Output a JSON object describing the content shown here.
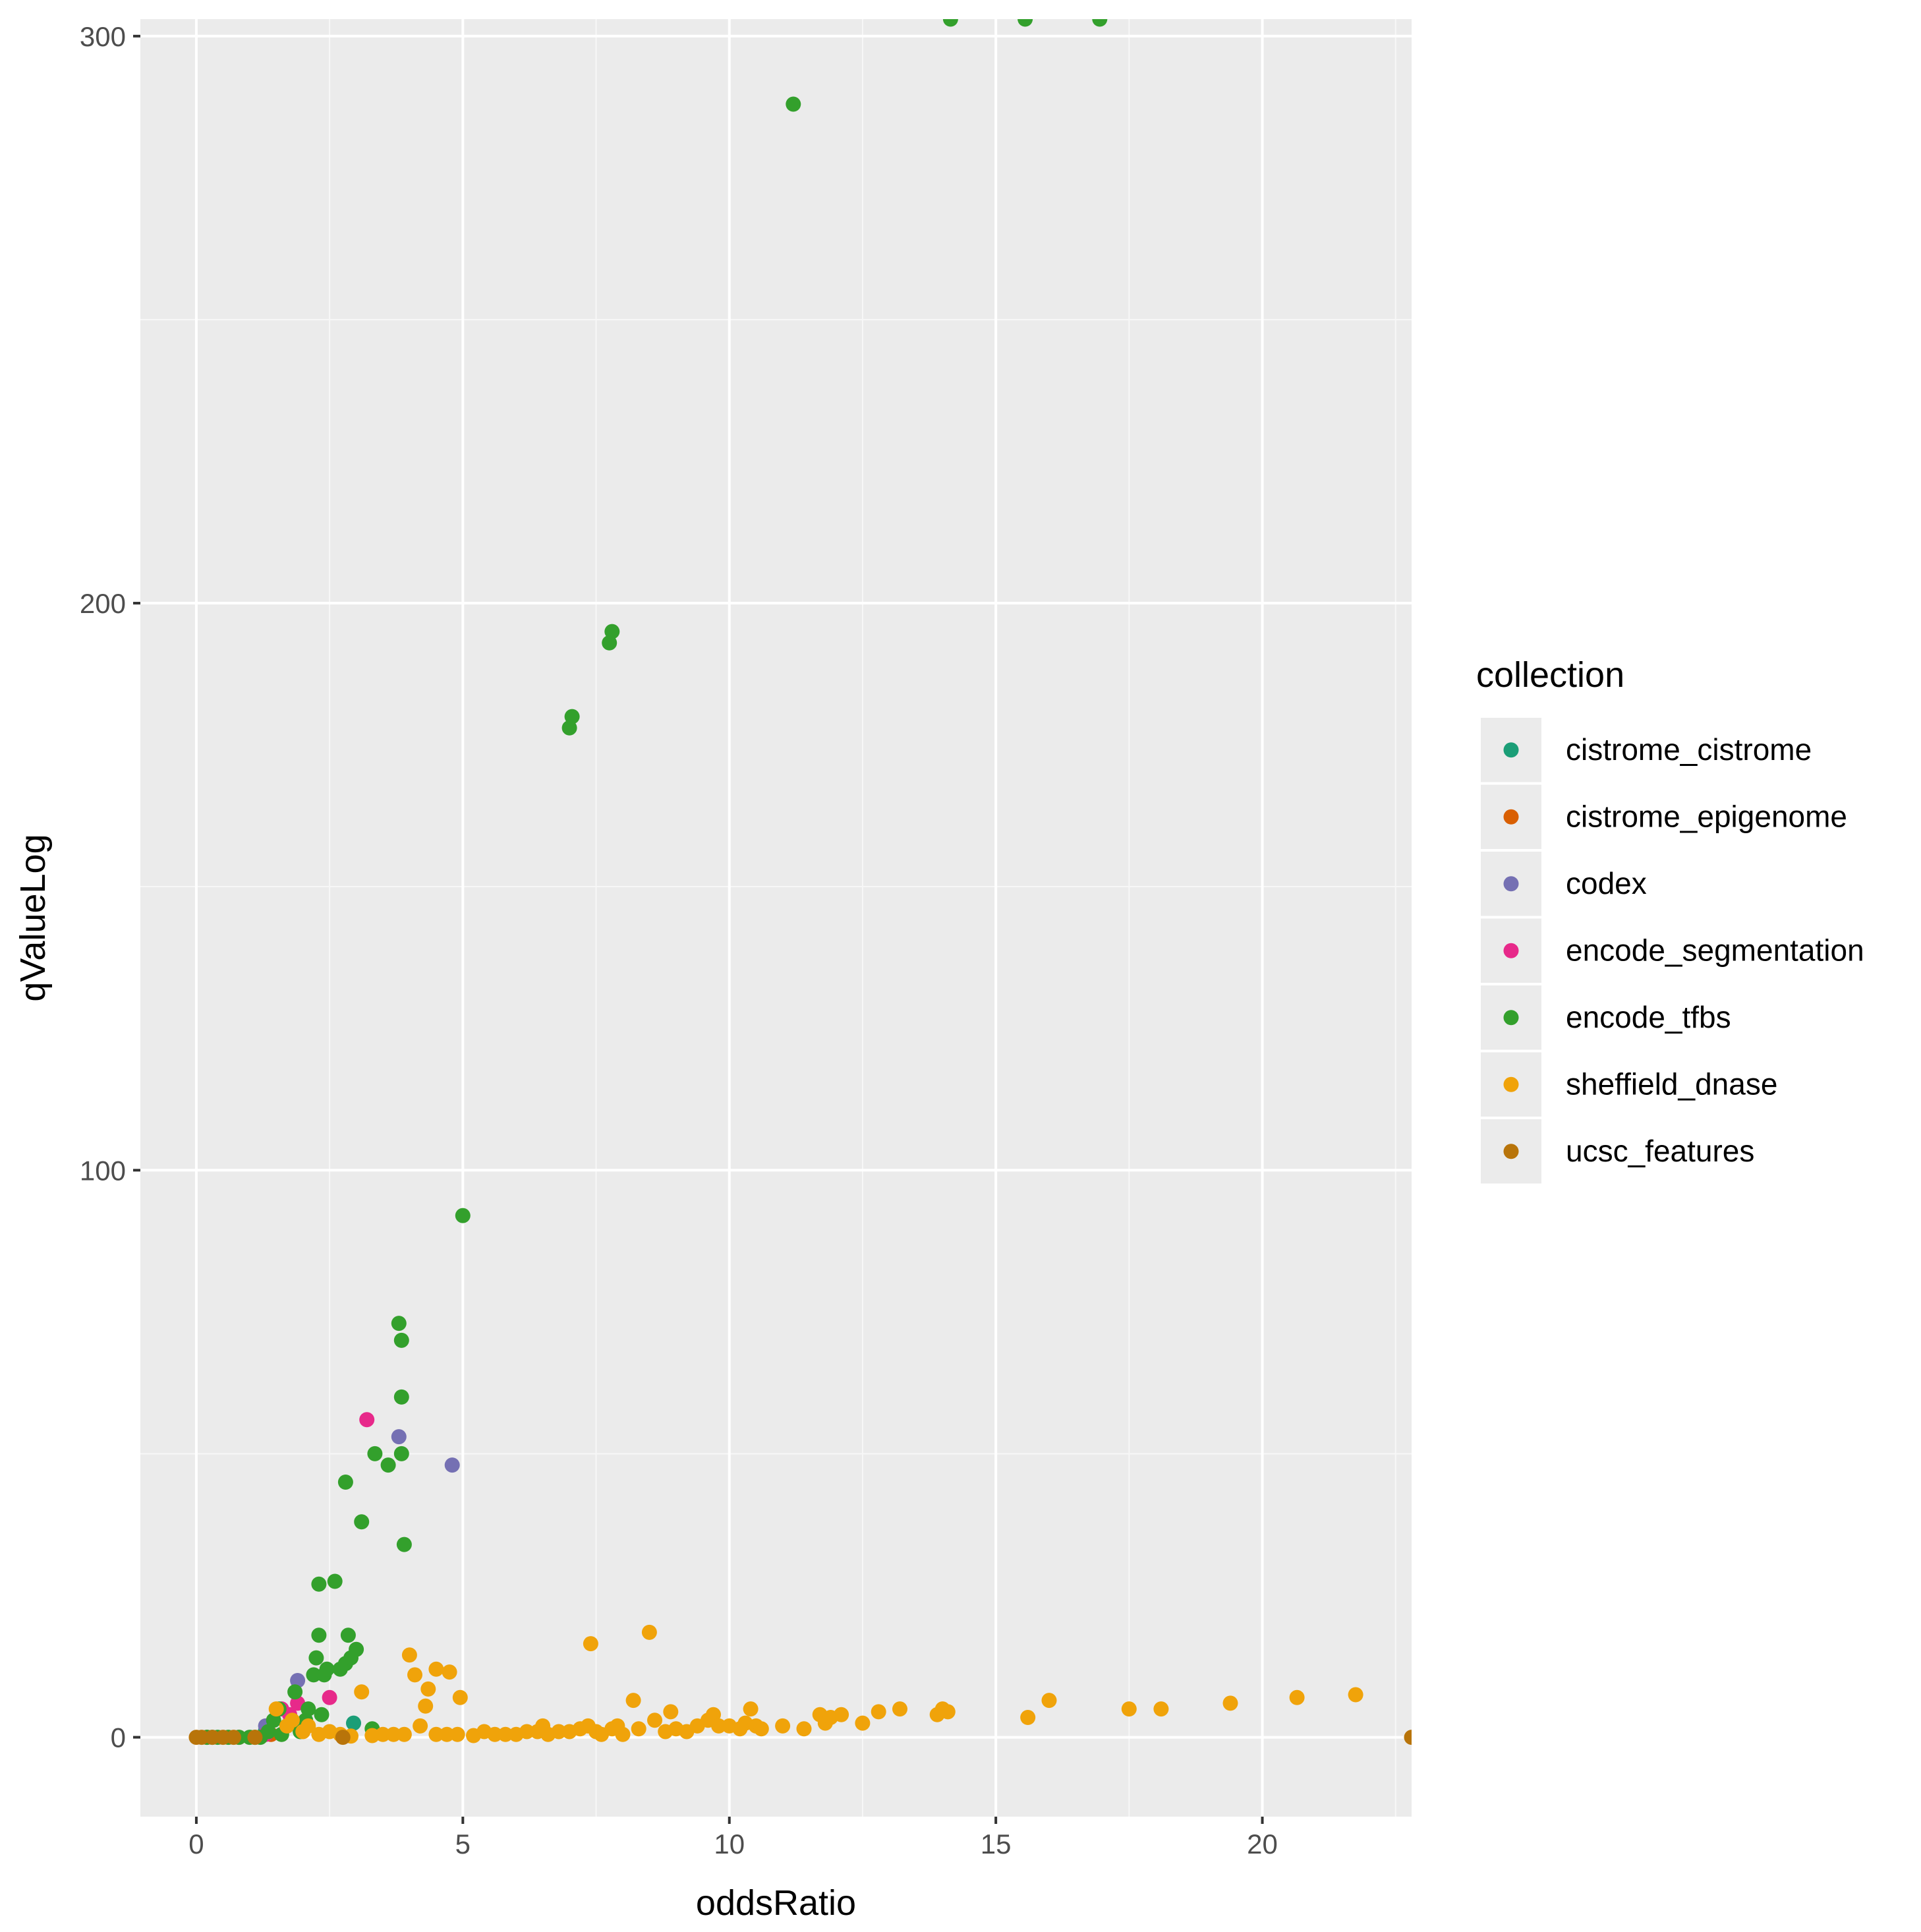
{
  "chart_data": {
    "type": "scatter",
    "title": "",
    "xlabel": "oddsRatio",
    "ylabel": "qValueLog",
    "xlim": [
      -1.05,
      22.8
    ],
    "ylim": [
      -14,
      303
    ],
    "x_ticks": [
      0,
      5,
      10,
      15,
      20
    ],
    "x_tick_labels": [
      "0",
      "5",
      "10",
      "15",
      "20"
    ],
    "y_ticks": [
      0,
      100,
      200,
      300
    ],
    "y_tick_labels": [
      "0",
      "100",
      "200",
      "300"
    ],
    "grid": true,
    "legend": {
      "title": "collection",
      "position": "right"
    },
    "series": [
      {
        "name": "cistrome_cistrome",
        "color": "#1B9E77",
        "points": [
          [
            0.3,
            0
          ],
          [
            1.3,
            1.2
          ],
          [
            2.95,
            2.5
          ]
        ]
      },
      {
        "name": "cistrome_epigenome",
        "color": "#D95F02",
        "points": [
          [
            0.2,
            0
          ],
          [
            0.8,
            0
          ],
          [
            1.4,
            0.5
          ]
        ]
      },
      {
        "name": "codex",
        "color": "#7570B3",
        "points": [
          [
            1.3,
            2
          ],
          [
            1.9,
            10
          ],
          [
            3.8,
            53
          ],
          [
            4.8,
            48
          ]
        ]
      },
      {
        "name": "encode_segmentation",
        "color": "#E7298A",
        "points": [
          [
            1.3,
            0.5
          ],
          [
            1.6,
            5
          ],
          [
            1.75,
            4
          ],
          [
            1.9,
            6
          ],
          [
            2.5,
            7
          ],
          [
            3.2,
            56
          ]
        ]
      },
      {
        "name": "encode_tfbs",
        "color": "#33A02C",
        "points": [
          [
            0.2,
            0
          ],
          [
            0.4,
            0
          ],
          [
            0.6,
            0
          ],
          [
            0.8,
            0
          ],
          [
            1.0,
            0
          ],
          [
            1.1,
            0
          ],
          [
            1.2,
            0
          ],
          [
            1.35,
            1
          ],
          [
            1.45,
            3
          ],
          [
            1.55,
            5
          ],
          [
            1.6,
            0.5
          ],
          [
            1.7,
            2
          ],
          [
            1.85,
            8
          ],
          [
            1.95,
            1
          ],
          [
            2.05,
            3
          ],
          [
            2.1,
            5
          ],
          [
            2.2,
            11
          ],
          [
            2.25,
            14
          ],
          [
            2.35,
            4
          ],
          [
            2.4,
            11
          ],
          [
            2.45,
            12
          ],
          [
            2.3,
            18
          ],
          [
            2.3,
            27
          ],
          [
            2.6,
            27.5
          ],
          [
            2.7,
            12
          ],
          [
            2.8,
            13
          ],
          [
            2.9,
            14
          ],
          [
            2.85,
            18
          ],
          [
            3.0,
            15.5
          ],
          [
            2.8,
            45
          ],
          [
            3.1,
            38
          ],
          [
            3.35,
            50
          ],
          [
            3.6,
            48
          ],
          [
            3.3,
            1.5
          ],
          [
            3.8,
            73
          ],
          [
            3.85,
            70
          ],
          [
            3.85,
            60
          ],
          [
            3.85,
            50
          ],
          [
            3.9,
            34
          ],
          [
            5.0,
            92
          ],
          [
            7.0,
            178
          ],
          [
            7.05,
            180
          ],
          [
            7.75,
            193
          ],
          [
            7.8,
            195
          ],
          [
            11.2,
            288
          ],
          [
            14.15,
            303
          ],
          [
            15.55,
            303
          ],
          [
            16.95,
            303
          ]
        ]
      },
      {
        "name": "sheffield_dnase",
        "color": "#F0A30A",
        "points": [
          [
            1.5,
            5
          ],
          [
            1.7,
            2
          ],
          [
            1.8,
            3
          ],
          [
            2.0,
            1
          ],
          [
            2.1,
            2
          ],
          [
            2.3,
            0.5
          ],
          [
            2.5,
            1
          ],
          [
            2.7,
            0.5
          ],
          [
            2.9,
            0.2
          ],
          [
            3.1,
            8
          ],
          [
            3.3,
            0.3
          ],
          [
            3.5,
            0.5
          ],
          [
            3.7,
            0.5
          ],
          [
            3.9,
            0.5
          ],
          [
            4.0,
            14.5
          ],
          [
            4.1,
            11
          ],
          [
            4.2,
            2
          ],
          [
            4.3,
            5.5
          ],
          [
            4.35,
            8.5
          ],
          [
            4.5,
            0.5
          ],
          [
            4.7,
            0.5
          ],
          [
            4.9,
            0.5
          ],
          [
            4.5,
            12
          ],
          [
            4.75,
            11.5
          ],
          [
            4.95,
            7
          ],
          [
            5.2,
            0.3
          ],
          [
            5.4,
            1
          ],
          [
            5.6,
            0.5
          ],
          [
            5.8,
            0.5
          ],
          [
            6.0,
            0.5
          ],
          [
            6.2,
            1
          ],
          [
            6.4,
            1
          ],
          [
            6.5,
            2
          ],
          [
            6.6,
            0.5
          ],
          [
            6.8,
            1
          ],
          [
            7.0,
            1
          ],
          [
            7.2,
            1.5
          ],
          [
            7.35,
            2
          ],
          [
            7.5,
            1
          ],
          [
            7.6,
            0.5
          ],
          [
            7.8,
            1.5
          ],
          [
            7.4,
            16.5
          ],
          [
            7.9,
            2
          ],
          [
            8.0,
            0.5
          ],
          [
            8.2,
            6.5
          ],
          [
            8.3,
            1.5
          ],
          [
            8.5,
            18.5
          ],
          [
            8.6,
            3
          ],
          [
            8.8,
            1
          ],
          [
            8.9,
            4.5
          ],
          [
            9.0,
            1.5
          ],
          [
            9.2,
            1
          ],
          [
            9.4,
            2
          ],
          [
            9.6,
            3
          ],
          [
            9.7,
            4
          ],
          [
            9.8,
            2
          ],
          [
            10.0,
            2
          ],
          [
            10.2,
            1.5
          ],
          [
            10.3,
            2.5
          ],
          [
            10.4,
            5
          ],
          [
            10.5,
            2
          ],
          [
            10.6,
            1.5
          ],
          [
            11.0,
            2
          ],
          [
            11.4,
            1.5
          ],
          [
            11.7,
            4
          ],
          [
            11.8,
            2.5
          ],
          [
            11.9,
            3.5
          ],
          [
            12.1,
            4
          ],
          [
            12.5,
            2.5
          ],
          [
            12.8,
            4.5
          ],
          [
            13.2,
            5
          ],
          [
            13.9,
            4
          ],
          [
            14.0,
            5
          ],
          [
            14.1,
            4.5
          ],
          [
            15.6,
            3.5
          ],
          [
            16.0,
            6.5
          ],
          [
            17.5,
            5
          ],
          [
            18.1,
            5
          ],
          [
            19.4,
            6
          ],
          [
            20.65,
            7
          ],
          [
            21.75,
            7.5
          ]
        ]
      },
      {
        "name": "ucsc_features",
        "color": "#B8740A",
        "points": [
          [
            0,
            0
          ],
          [
            0.1,
            0
          ],
          [
            0.3,
            0
          ],
          [
            0.5,
            0
          ],
          [
            0.7,
            0
          ],
          [
            1.1,
            0
          ],
          [
            2.75,
            0
          ],
          [
            22.8,
            0
          ]
        ]
      }
    ]
  }
}
